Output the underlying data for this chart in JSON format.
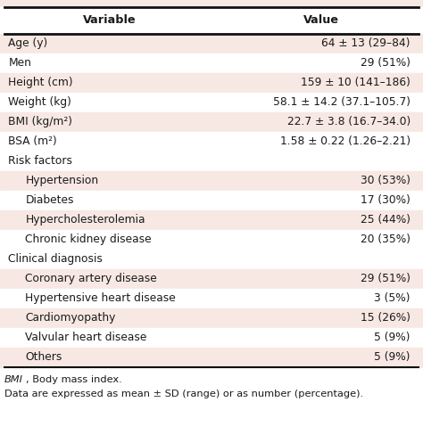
{
  "title_row": [
    "Variable",
    "Value"
  ],
  "rows": [
    {
      "variable": "Age (y)",
      "value": "64 ± 13 (29–84)",
      "indent": 0,
      "header": false,
      "shaded": true
    },
    {
      "variable": "Men",
      "value": "29 (51%)",
      "indent": 0,
      "header": false,
      "shaded": false
    },
    {
      "variable": "Height (cm)",
      "value": "159 ± 10 (141–186)",
      "indent": 0,
      "header": false,
      "shaded": true
    },
    {
      "variable": "Weight (kg)",
      "value": "58.1 ± 14.2 (37.1–105.7)",
      "indent": 0,
      "header": false,
      "shaded": false
    },
    {
      "variable": "BMI (kg/m²)",
      "value": "22.7 ± 3.8 (16.7–34.0)",
      "indent": 0,
      "header": false,
      "shaded": true
    },
    {
      "variable": "BSA (m²)",
      "value": "1.58 ± 0.22 (1.26–2.21)",
      "indent": 0,
      "header": false,
      "shaded": false
    },
    {
      "variable": "Risk factors",
      "value": "",
      "indent": 0,
      "header": true,
      "shaded": false
    },
    {
      "variable": "Hypertension",
      "value": "30 (53%)",
      "indent": 1,
      "header": false,
      "shaded": true
    },
    {
      "variable": "Diabetes",
      "value": "17 (30%)",
      "indent": 1,
      "header": false,
      "shaded": false
    },
    {
      "variable": "Hypercholesterolemia",
      "value": "25 (44%)",
      "indent": 1,
      "header": false,
      "shaded": true
    },
    {
      "variable": "Chronic kidney disease",
      "value": "20 (35%)",
      "indent": 1,
      "header": false,
      "shaded": false
    },
    {
      "variable": "Clinical diagnosis",
      "value": "",
      "indent": 0,
      "header": true,
      "shaded": false
    },
    {
      "variable": "Coronary artery disease",
      "value": "29 (51%)",
      "indent": 1,
      "header": false,
      "shaded": true
    },
    {
      "variable": "Hypertensive heart disease",
      "value": "3 (5%)",
      "indent": 1,
      "header": false,
      "shaded": false
    },
    {
      "variable": "Cardiomyopathy",
      "value": "15 (26%)",
      "indent": 1,
      "header": false,
      "shaded": true
    },
    {
      "variable": "Valvular heart disease",
      "value": "5 (9%)",
      "indent": 1,
      "header": false,
      "shaded": false
    },
    {
      "variable": "Others",
      "value": "5 (9%)",
      "indent": 1,
      "header": false,
      "shaded": true
    }
  ],
  "footnote_line1": "BMI, Body mass index.",
  "footnote_line2": "Data are expressed as mean ± SD (range) or as number (percentage).",
  "shaded_color": "#f7e8e3",
  "header_bg": "#ffffff",
  "text_color": "#1a1a1a",
  "border_color": "#111111",
  "font_size": 8.8,
  "header_font_size": 9.2,
  "footnote_font_size": 8.2,
  "indent_amount": 0.04
}
